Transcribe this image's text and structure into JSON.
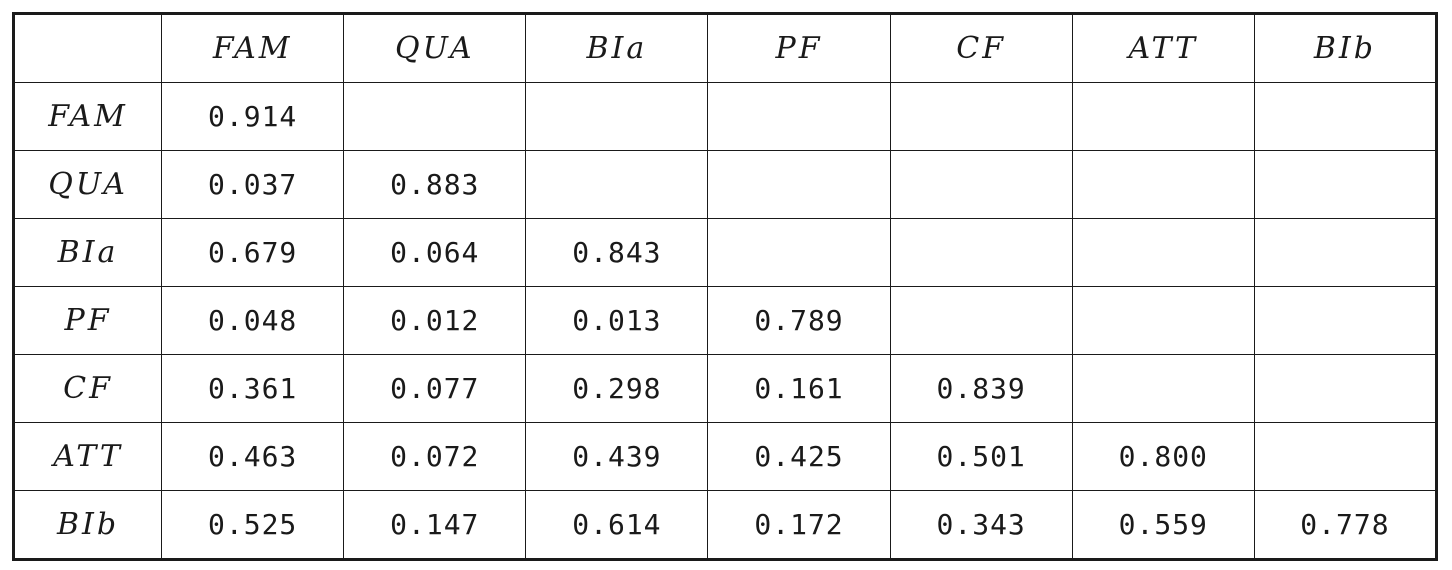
{
  "table": {
    "corner": "",
    "columns": [
      "FAM",
      "QUA",
      "BIa",
      "PF",
      "CF",
      "ATT",
      "BIb"
    ],
    "rows": [
      {
        "label": "FAM",
        "values": [
          "0.914",
          "",
          "",
          "",
          "",
          "",
          ""
        ]
      },
      {
        "label": "QUA",
        "values": [
          "0.037",
          "0.883",
          "",
          "",
          "",
          "",
          ""
        ]
      },
      {
        "label": "BIa",
        "values": [
          "0.679",
          "0.064",
          "0.843",
          "",
          "",
          "",
          ""
        ]
      },
      {
        "label": "PF",
        "values": [
          "0.048",
          "0.012",
          "0.013",
          "0.789",
          "",
          "",
          ""
        ]
      },
      {
        "label": "CF",
        "values": [
          "0.361",
          "0.077",
          "0.298",
          "0.161",
          "0.839",
          "",
          ""
        ]
      },
      {
        "label": "ATT",
        "values": [
          "0.463",
          "0.072",
          "0.439",
          "0.425",
          "0.501",
          "0.800",
          ""
        ]
      },
      {
        "label": "BIb",
        "values": [
          "0.525",
          "0.147",
          "0.614",
          "0.172",
          "0.343",
          "0.559",
          "0.778"
        ]
      }
    ]
  }
}
